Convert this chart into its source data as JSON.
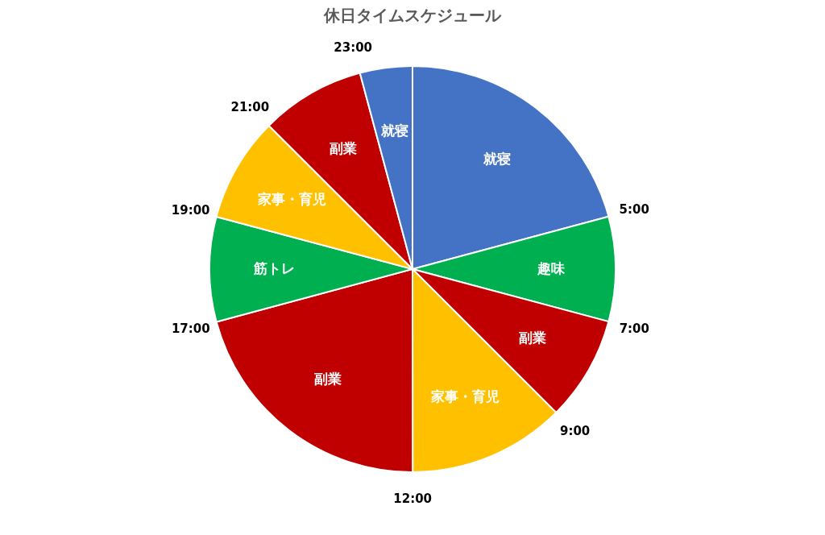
{
  "chart_data": {
    "type": "pie",
    "title": "休日タイムスケジュール",
    "categories": [
      "就寝",
      "趣味",
      "副業",
      "家事・育児",
      "副業",
      "筋トレ",
      "家事・育児",
      "副業",
      "就寝"
    ],
    "values": [
      20.83,
      8.33,
      8.33,
      12.5,
      20.83,
      8.33,
      8.34,
      8.34,
      4.17
    ],
    "colors": [
      "#4472c4",
      "#00b050",
      "#c00000",
      "#ffc000",
      "#c00000",
      "#00b050",
      "#ffc000",
      "#c00000",
      "#4472c4"
    ],
    "data_labels": false,
    "annotations": [
      "5:00",
      "7:00",
      "9:00",
      "12:00",
      "17:00",
      "19:00",
      "21:00",
      "23:00"
    ],
    "legend": false
  }
}
